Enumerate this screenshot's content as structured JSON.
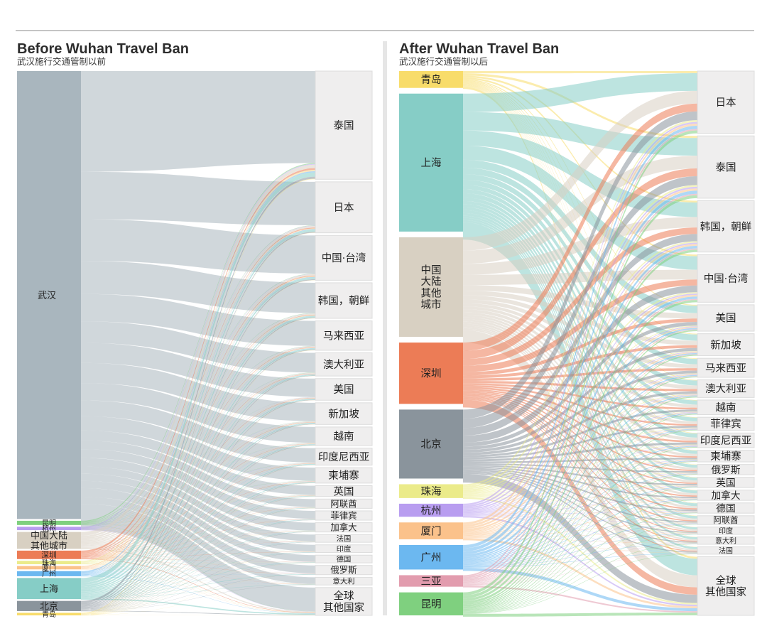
{
  "chart_data": [
    {
      "type": "sankey",
      "title": "Before Wuhan Travel Ban",
      "subtitle": "武汉施行交通管制以前",
      "sources": [
        {
          "name": "武汉",
          "color": "#a9b6be",
          "total": 530
        },
        {
          "name": "昆明",
          "color": "#7fd07f",
          "total": 5
        },
        {
          "name": "杭州",
          "color": "#b89df0",
          "total": 4
        },
        {
          "name": "中国大陆\n其他城市",
          "color": "#d8d0c2",
          "total": 20
        },
        {
          "name": "深圳",
          "color": "#ec7c56",
          "total": 10
        },
        {
          "name": "珠海",
          "color": "#ebeb8a",
          "total": 4
        },
        {
          "name": "厦门",
          "color": "#fbc28b",
          "total": 4
        },
        {
          "name": "广州",
          "color": "#6cb8f0",
          "total": 6
        },
        {
          "name": "上海",
          "color": "#86cdc6",
          "total": 25
        },
        {
          "name": "北京",
          "color": "#8a949c",
          "total": 12
        },
        {
          "name": "青岛",
          "color": "#f8dc6a",
          "total": 3
        }
      ],
      "destinations": [
        {
          "name": "泰国",
          "total": 140
        },
        {
          "name": "日本",
          "total": 66
        },
        {
          "name": "中国·台湾",
          "total": 58
        },
        {
          "name": "韩国，朝鲜",
          "total": 46
        },
        {
          "name": "马来西亚",
          "total": 38
        },
        {
          "name": "澳大利亚",
          "total": 30
        },
        {
          "name": "美国",
          "total": 28
        },
        {
          "name": "新加坡",
          "total": 28
        },
        {
          "name": "越南",
          "total": 24
        },
        {
          "name": "印度尼西亚",
          "total": 22
        },
        {
          "name": "柬埔寨",
          "total": 20
        },
        {
          "name": "英国",
          "total": 14
        },
        {
          "name": "阿联酋",
          "total": 12
        },
        {
          "name": "菲律宾",
          "total": 12
        },
        {
          "name": "加拿大",
          "total": 12
        },
        {
          "name": "法国",
          "total": 10
        },
        {
          "name": "印度",
          "total": 10
        },
        {
          "name": "德国",
          "total": 10
        },
        {
          "name": "俄罗斯",
          "total": 12
        },
        {
          "name": "意大利",
          "total": 10
        },
        {
          "name": "全球\n其他国家",
          "total": 36
        }
      ]
    },
    {
      "type": "sankey",
      "title": "After Wuhan Travel Ban",
      "subtitle": "武汉施行交通管制以后",
      "sources": [
        {
          "name": "青岛",
          "color": "#f8dc6a",
          "total": 22
        },
        {
          "name": "上海",
          "color": "#86cdc6",
          "total": 180
        },
        {
          "name": "中国\n大陆\n其他\n城市",
          "color": "#d8d0c2",
          "total": 130
        },
        {
          "name": "深圳",
          "color": "#ec7c56",
          "total": 80
        },
        {
          "name": "北京",
          "color": "#8a949c",
          "total": 90
        },
        {
          "name": "珠海",
          "color": "#ebeb8a",
          "total": 18
        },
        {
          "name": "杭州",
          "color": "#b89df0",
          "total": 17
        },
        {
          "name": "厦门",
          "color": "#fbc28b",
          "total": 22
        },
        {
          "name": "广州",
          "color": "#6cb8f0",
          "total": 32
        },
        {
          "name": "三亚",
          "color": "#e29cae",
          "total": 15
        },
        {
          "name": "昆明",
          "color": "#7fd07f",
          "total": 30
        }
      ],
      "destinations": [
        {
          "name": "日本",
          "total": 85
        },
        {
          "name": "泰国",
          "total": 85
        },
        {
          "name": "韩国，朝鲜",
          "total": 70
        },
        {
          "name": "中国·台湾",
          "total": 65
        },
        {
          "name": "美国",
          "total": 36
        },
        {
          "name": "新加坡",
          "total": 30
        },
        {
          "name": "马来西亚",
          "total": 26
        },
        {
          "name": "澳大利亚",
          "total": 24
        },
        {
          "name": "越南",
          "total": 20
        },
        {
          "name": "菲律宾",
          "total": 18
        },
        {
          "name": "印度尼西亚",
          "total": 20
        },
        {
          "name": "柬埔寨",
          "total": 16
        },
        {
          "name": "俄罗斯",
          "total": 14
        },
        {
          "name": "英国",
          "total": 14
        },
        {
          "name": "加拿大",
          "total": 14
        },
        {
          "name": "德国",
          "total": 14
        },
        {
          "name": "阿联酋",
          "total": 12
        },
        {
          "name": "印度",
          "total": 10
        },
        {
          "name": "意大利",
          "total": 10
        },
        {
          "name": "法国",
          "total": 10
        },
        {
          "name": "全球\n其他国家",
          "total": 80
        }
      ]
    }
  ]
}
